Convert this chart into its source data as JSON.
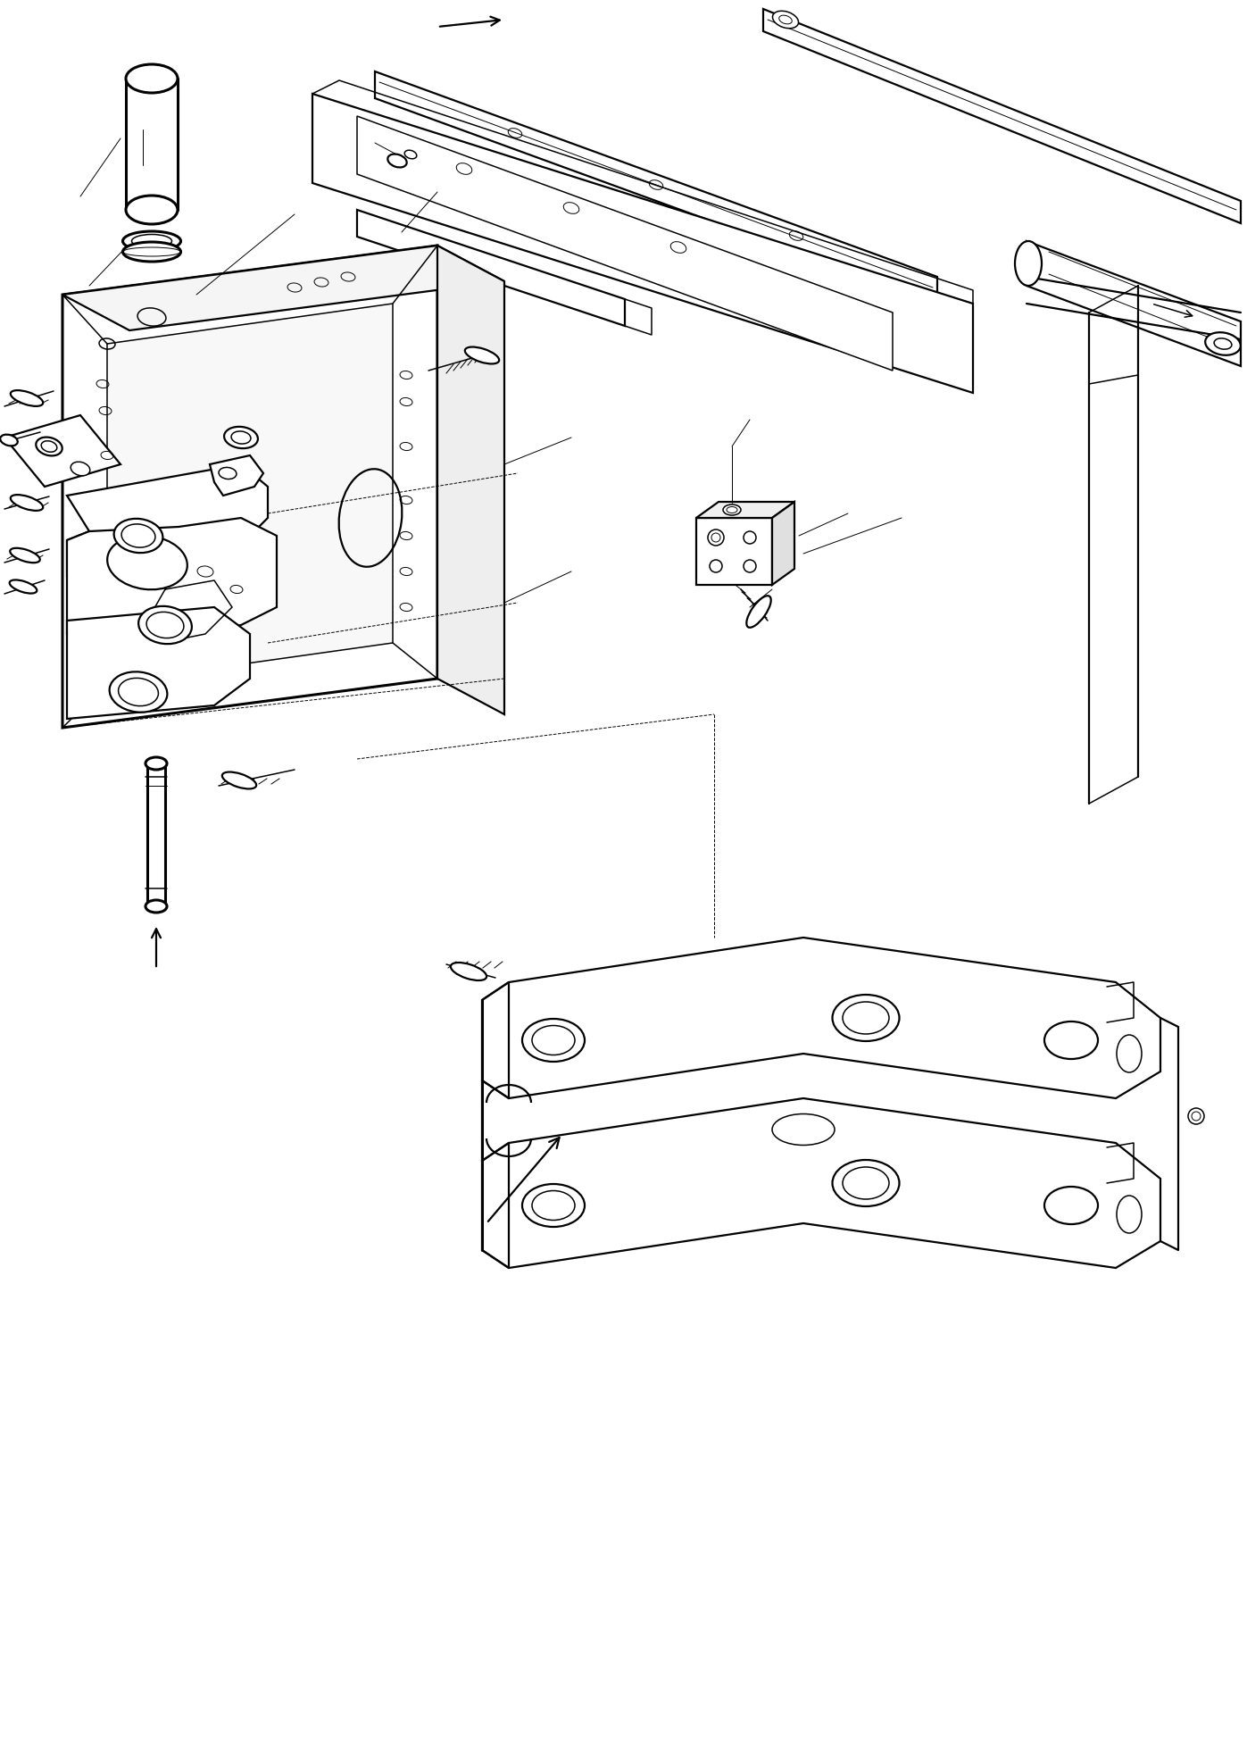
{
  "bg_color": "#ffffff",
  "line_color": "#000000",
  "fig_width": 13.97,
  "fig_height": 19.61,
  "dpi": 100,
  "lw_thin": 0.7,
  "lw_med": 1.1,
  "lw_thick": 1.6,
  "lw_xthick": 2.2
}
